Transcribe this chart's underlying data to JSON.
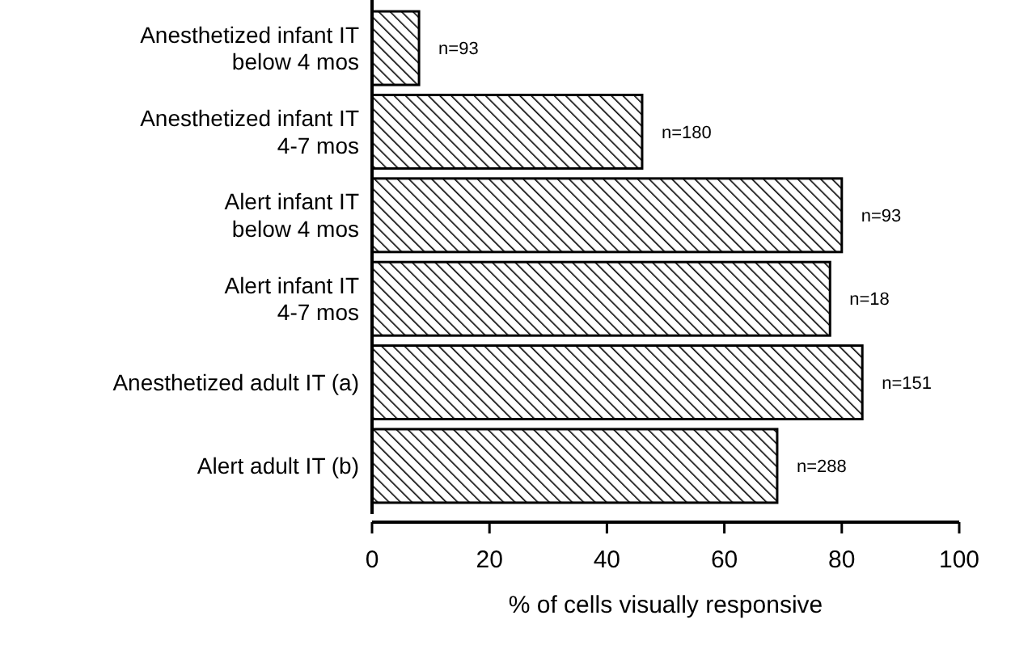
{
  "chart_data": {
    "type": "bar",
    "orientation": "horizontal",
    "xlabel": "% of cells visually responsive",
    "categories": [
      "Anesthetized infant IT\nbelow 4 mos",
      "Anesthetized infant IT\n4-7 mos",
      "Alert infant IT\nbelow 4 mos",
      "Alert infant IT\n4-7 mos",
      "Anesthetized adult IT (a)",
      "Alert adult IT (b)"
    ],
    "values": [
      8,
      46,
      80,
      78,
      83.5,
      69
    ],
    "annotations": [
      {
        "text": "n=93",
        "x": 8,
        "y": "Anesthetized infant IT\nbelow 4 mos"
      },
      {
        "text": "n=180",
        "x": 46,
        "y": "Anesthetized infant IT\n4-7 mos"
      },
      {
        "text": "n=93",
        "x": 80,
        "y": "Alert infant IT\nbelow 4 mos"
      },
      {
        "text": "n=18",
        "x": 78,
        "y": "Alert infant IT\n4-7 mos"
      },
      {
        "text": "n=151",
        "x": 83.5,
        "y": "Anesthetized adult IT (a)"
      },
      {
        "text": "n=288",
        "x": 69,
        "y": "Alert adult IT (b)"
      }
    ],
    "color": "#000000",
    "xlim": [
      0,
      100
    ],
    "xticks": [
      0,
      20,
      40,
      60,
      80,
      100
    ],
    "grid": false
  }
}
